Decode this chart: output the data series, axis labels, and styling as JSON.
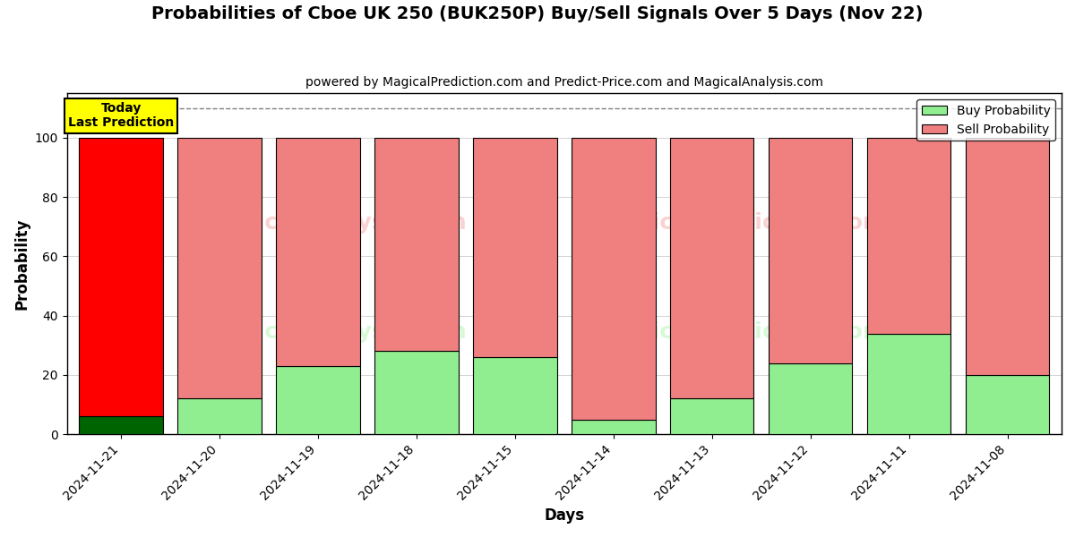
{
  "title": "Probabilities of Cboe UK 250 (BUK250P) Buy/Sell Signals Over 5 Days (Nov 22)",
  "subtitle": "powered by MagicalPrediction.com and Predict-Price.com and MagicalAnalysis.com",
  "xlabel": "Days",
  "ylabel": "Probability",
  "categories": [
    "2024-11-21",
    "2024-11-20",
    "2024-11-19",
    "2024-11-18",
    "2024-11-15",
    "2024-11-14",
    "2024-11-13",
    "2024-11-12",
    "2024-11-11",
    "2024-11-08"
  ],
  "buy_values": [
    6,
    12,
    23,
    28,
    26,
    5,
    12,
    24,
    34,
    20
  ],
  "sell_values": [
    94,
    88,
    77,
    72,
    74,
    95,
    88,
    76,
    66,
    80
  ],
  "today_buy_color": "#006400",
  "today_sell_color": "#FF0000",
  "past_buy_color": "#90EE90",
  "past_sell_color": "#F08080",
  "today_annotation_text": "Today\nLast Prediction",
  "today_annotation_bg": "#FFFF00",
  "dashed_line_y": 110,
  "ylim": [
    0,
    115
  ],
  "yticks": [
    0,
    20,
    40,
    60,
    80,
    100
  ],
  "legend_buy_label": "Buy Probability",
  "legend_sell_label": "Sell Probability",
  "bar_width": 0.85,
  "figsize": [
    12.0,
    6.0
  ],
  "dpi": 100,
  "bg_color": "#ffffff"
}
